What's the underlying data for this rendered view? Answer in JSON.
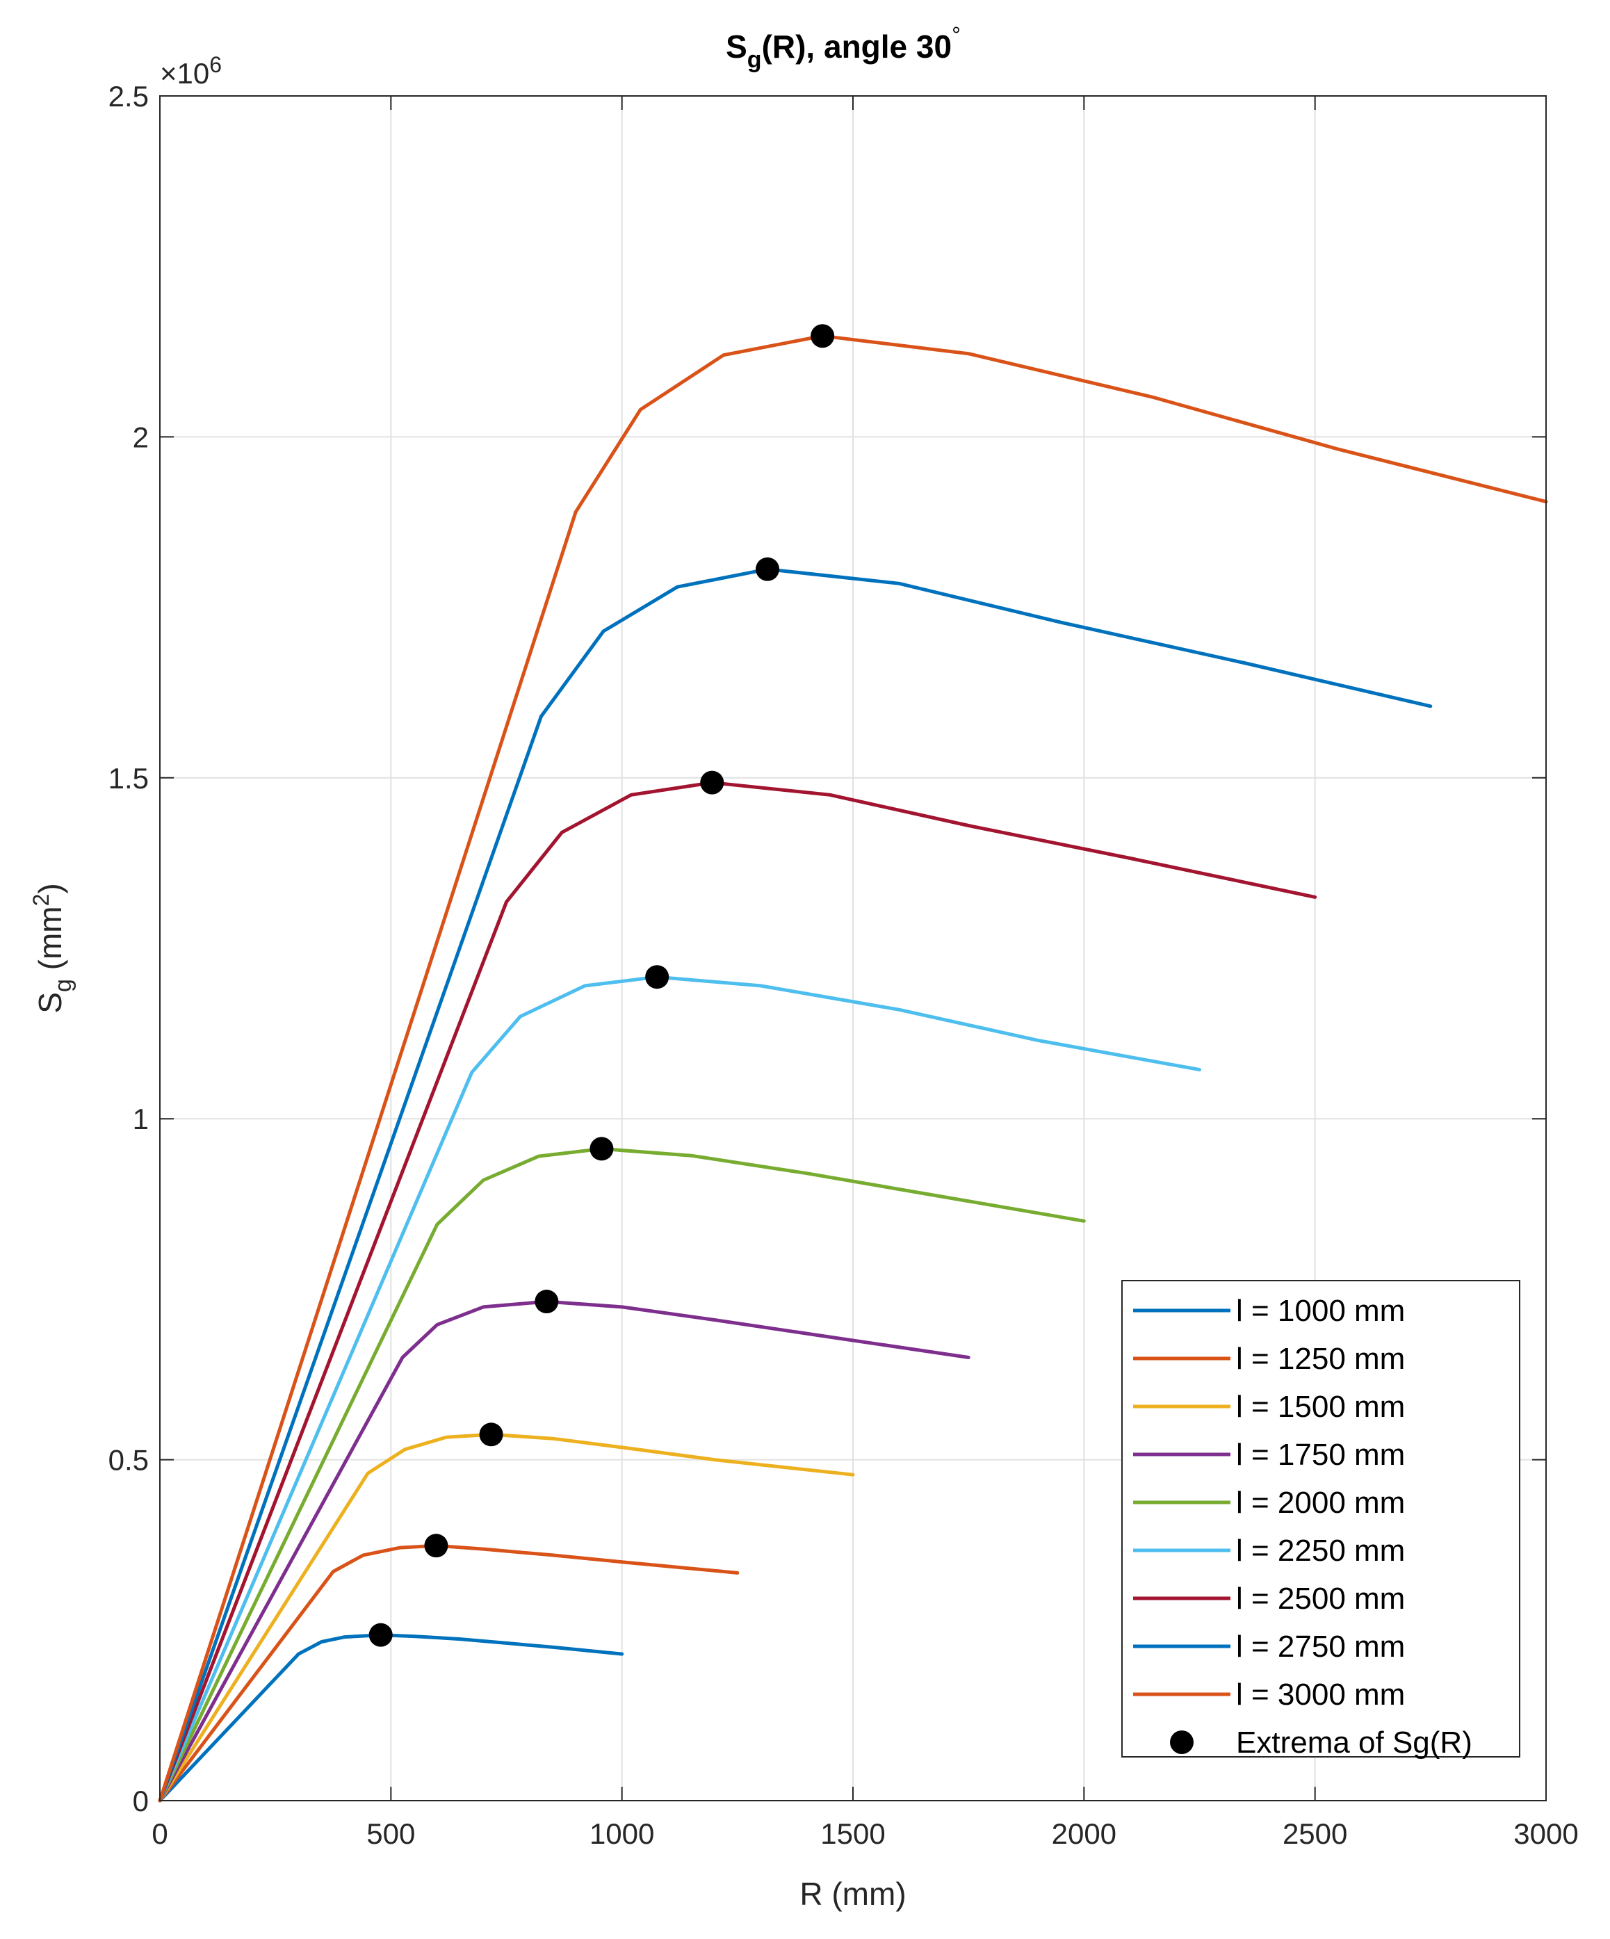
{
  "chart_data": {
    "type": "line",
    "title": {
      "main": "S",
      "sub": "g",
      "rest": "(R), angle 30",
      "degree": "°"
    },
    "xlabel": "R (mm)",
    "ylabel": {
      "main": "S",
      "sub": "g",
      "unit_open": " (mm",
      "sup": "2",
      "unit_close": ")"
    },
    "xlim": [
      0,
      3000
    ],
    "ylim": [
      0,
      2500000
    ],
    "x_ticks": [
      0,
      500,
      1000,
      1500,
      2000,
      2500,
      3000
    ],
    "x_tick_labels": [
      "0",
      "500",
      "1000",
      "1500",
      "2000",
      "2500",
      "3000"
    ],
    "y_ticks": [
      0,
      500000,
      1000000,
      1500000,
      2000000,
      2500000
    ],
    "y_tick_labels": [
      "0",
      "0.5",
      "1",
      "1.5",
      "2",
      "2.5"
    ],
    "y_exponent": {
      "prefix": "×10",
      "power": "6"
    },
    "grid": true,
    "legend_position": "bottom-right",
    "series": [
      {
        "name": "l = 1000 mm",
        "color": "#0072BD",
        "points": [
          [
            0,
            0
          ],
          [
            300,
            215000
          ],
          [
            350,
            233000
          ],
          [
            400,
            240000
          ],
          [
            478,
            243000
          ],
          [
            550,
            241000
          ],
          [
            650,
            237000
          ],
          [
            750,
            231000
          ],
          [
            850,
            225000
          ],
          [
            1000,
            215000
          ]
        ]
      },
      {
        "name": "l = 1250 mm",
        "color": "#D95319",
        "points": [
          [
            0,
            0
          ],
          [
            375,
            336000
          ],
          [
            440,
            360000
          ],
          [
            520,
            371000
          ],
          [
            598,
            374000
          ],
          [
            700,
            369000
          ],
          [
            850,
            360000
          ],
          [
            1000,
            350000
          ],
          [
            1250,
            334000
          ]
        ]
      },
      {
        "name": "l = 1500 mm",
        "color": "#EDB120",
        "points": [
          [
            0,
            0
          ],
          [
            450,
            480000
          ],
          [
            530,
            515000
          ],
          [
            620,
            533000
          ],
          [
            717,
            537000
          ],
          [
            850,
            531000
          ],
          [
            1000,
            518000
          ],
          [
            1200,
            500000
          ],
          [
            1500,
            478000
          ]
        ]
      },
      {
        "name": "l = 1750 mm",
        "color": "#7E2F8E",
        "points": [
          [
            0,
            0
          ],
          [
            525,
            650000
          ],
          [
            600,
            698000
          ],
          [
            700,
            724000
          ],
          [
            837,
            732000
          ],
          [
            1000,
            724000
          ],
          [
            1200,
            705000
          ],
          [
            1450,
            680000
          ],
          [
            1750,
            650000
          ]
        ]
      },
      {
        "name": "l = 2000 mm",
        "color": "#77AC30",
        "points": [
          [
            0,
            0
          ],
          [
            600,
            845000
          ],
          [
            700,
            910000
          ],
          [
            820,
            945000
          ],
          [
            956,
            956000
          ],
          [
            1150,
            946000
          ],
          [
            1400,
            920000
          ],
          [
            1700,
            885000
          ],
          [
            2000,
            850000
          ]
        ]
      },
      {
        "name": "l = 2250 mm",
        "color": "#4DBEEE",
        "points": [
          [
            0,
            0
          ],
          [
            675,
            1068000
          ],
          [
            780,
            1150000
          ],
          [
            920,
            1195000
          ],
          [
            1076,
            1208000
          ],
          [
            1300,
            1195000
          ],
          [
            1600,
            1160000
          ],
          [
            1900,
            1115000
          ],
          [
            2250,
            1072000
          ]
        ]
      },
      {
        "name": "l = 2500 mm",
        "color": "#A2142F",
        "points": [
          [
            0,
            0
          ],
          [
            750,
            1318000
          ],
          [
            870,
            1420000
          ],
          [
            1020,
            1475000
          ],
          [
            1195,
            1493000
          ],
          [
            1450,
            1475000
          ],
          [
            1750,
            1430000
          ],
          [
            2100,
            1382000
          ],
          [
            2500,
            1325000
          ]
        ]
      },
      {
        "name": "l = 2750 mm",
        "color": "#0072BD",
        "points": [
          [
            0,
            0
          ],
          [
            825,
            1590000
          ],
          [
            960,
            1715000
          ],
          [
            1120,
            1780000
          ],
          [
            1315,
            1806000
          ],
          [
            1600,
            1785000
          ],
          [
            1950,
            1728000
          ],
          [
            2350,
            1668000
          ],
          [
            2750,
            1605000
          ]
        ]
      },
      {
        "name": "l = 3000 mm",
        "color": "#D95319",
        "points": [
          [
            0,
            0
          ],
          [
            900,
            1890000
          ],
          [
            1040,
            2040000
          ],
          [
            1220,
            2120000
          ],
          [
            1434,
            2148000
          ],
          [
            1750,
            2122000
          ],
          [
            2150,
            2058000
          ],
          [
            2550,
            1982000
          ],
          [
            3000,
            1905000
          ]
        ]
      }
    ],
    "extrema": {
      "name": "Extrema of Sg(R)",
      "color": "#000000",
      "points": [
        [
          478,
          243000
        ],
        [
          598,
          374000
        ],
        [
          717,
          537000
        ],
        [
          837,
          732000
        ],
        [
          956,
          956000
        ],
        [
          1076,
          1208000
        ],
        [
          1195,
          1493000
        ],
        [
          1315,
          1806000
        ],
        [
          1434,
          2148000
        ]
      ]
    }
  }
}
